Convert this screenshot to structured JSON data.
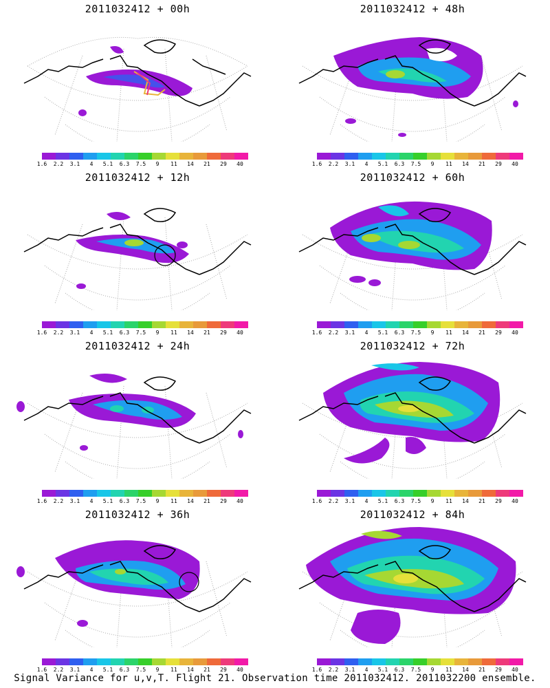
{
  "colorbar": {
    "colors": [
      "#9a19d6",
      "#6b34e4",
      "#2f5ff0",
      "#1f9ef0",
      "#19c6e8",
      "#22d4b0",
      "#2bd46a",
      "#37cf2a",
      "#a6d833",
      "#e6e03a",
      "#e8b43a",
      "#e89a3a",
      "#ef6a3a",
      "#ee3a7a",
      "#f21aa8"
    ],
    "labels": [
      "1.6",
      "2.2",
      "3.1",
      "4",
      "5.1",
      "6.3",
      "7.5",
      "9",
      "11",
      "14",
      "21",
      "29",
      "40"
    ]
  },
  "panels": [
    {
      "title": "2011032412 + 00h"
    },
    {
      "title": "2011032412 + 48h"
    },
    {
      "title": "2011032412 + 12h"
    },
    {
      "title": "2011032412 + 60h"
    },
    {
      "title": "2011032412 + 24h"
    },
    {
      "title": "2011032412 + 72h"
    },
    {
      "title": "2011032412 + 36h"
    },
    {
      "title": "2011032412 + 84h"
    }
  ],
  "footer": "Signal Variance for u,v,T. Flight 21. Observation time 2011032412. 2011032200 ensemble."
}
